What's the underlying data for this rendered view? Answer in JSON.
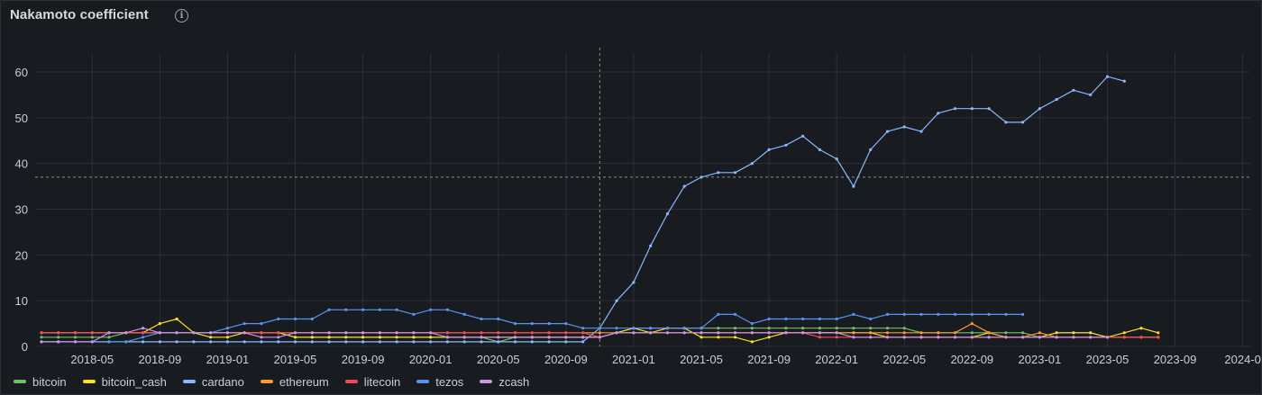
{
  "panel": {
    "title": "Nakamoto coefficient",
    "info_icon": "info-circle-icon"
  },
  "chart_data": {
    "type": "line",
    "title": "Nakamoto coefficient",
    "xlabel": "",
    "ylabel": "",
    "ylim": [
      0,
      65
    ],
    "y_ticks": [
      "0",
      "10",
      "20",
      "30",
      "40",
      "50",
      "60"
    ],
    "x_ticks": [
      "2018-05",
      "2018-09",
      "2019-01",
      "2019-05",
      "2019-09",
      "2020-01",
      "2020-05",
      "2020-09",
      "2021-01",
      "2021-05",
      "2021-09",
      "2022-01",
      "2022-05",
      "2022-09",
      "2023-01",
      "2023-05",
      "2023-09",
      "2024-0"
    ],
    "grid": true,
    "legend_position": "bottom",
    "crosshair": {
      "x": "2020-11-01",
      "y": 37
    },
    "series": [
      {
        "name": "bitcoin",
        "color": "#73bf69",
        "x": [
          "2018-02",
          "2018-03",
          "2018-04",
          "2018-05",
          "2018-06",
          "2018-07",
          "2018-08",
          "2018-09",
          "2018-10",
          "2018-11",
          "2018-12",
          "2019-01",
          "2019-02",
          "2019-03",
          "2019-04",
          "2019-05",
          "2019-06",
          "2019-07",
          "2019-08",
          "2019-09",
          "2019-10",
          "2019-11",
          "2019-12",
          "2020-01",
          "2020-02",
          "2020-03",
          "2020-04",
          "2020-05",
          "2020-06",
          "2020-07",
          "2020-08",
          "2020-09",
          "2020-10",
          "2020-11",
          "2020-12",
          "2021-01",
          "2021-02",
          "2021-03",
          "2021-04",
          "2021-05",
          "2021-06",
          "2021-07",
          "2021-08",
          "2021-09",
          "2021-10",
          "2021-11",
          "2021-12",
          "2022-01",
          "2022-02",
          "2022-03",
          "2022-04",
          "2022-05",
          "2022-06",
          "2022-07",
          "2022-08",
          "2022-09",
          "2022-10",
          "2022-11",
          "2022-12",
          "2023-01",
          "2023-02",
          "2023-03",
          "2023-04",
          "2023-05",
          "2023-06",
          "2023-07",
          "2023-08"
        ],
        "values": [
          2,
          2,
          2,
          2,
          2,
          3,
          3,
          3,
          3,
          3,
          3,
          3,
          3,
          3,
          3,
          2,
          2,
          2,
          2,
          2,
          2,
          2,
          2,
          2,
          2,
          2,
          2,
          1,
          2,
          2,
          2,
          2,
          2,
          2,
          3,
          4,
          4,
          4,
          4,
          4,
          4,
          4,
          4,
          4,
          4,
          4,
          4,
          4,
          4,
          4,
          4,
          4,
          3,
          3,
          3,
          3,
          3,
          3,
          3,
          2,
          3,
          3,
          3,
          2,
          2,
          2,
          2
        ]
      },
      {
        "name": "bitcoin_cash",
        "color": "#fade2a",
        "x": [
          "2018-02",
          "2018-03",
          "2018-04",
          "2018-05",
          "2018-06",
          "2018-07",
          "2018-08",
          "2018-09",
          "2018-10",
          "2018-11",
          "2018-12",
          "2019-01",
          "2019-02",
          "2019-03",
          "2019-04",
          "2019-05",
          "2019-06",
          "2019-07",
          "2019-08",
          "2019-09",
          "2019-10",
          "2019-11",
          "2019-12",
          "2020-01",
          "2020-02",
          "2020-03",
          "2020-04",
          "2020-05",
          "2020-06",
          "2020-07",
          "2020-08",
          "2020-09",
          "2020-10",
          "2020-11",
          "2020-12",
          "2021-01",
          "2021-02",
          "2021-03",
          "2021-04",
          "2021-05",
          "2021-06",
          "2021-07",
          "2021-08",
          "2021-09",
          "2021-10",
          "2021-11",
          "2021-12",
          "2022-01",
          "2022-02",
          "2022-03",
          "2022-04",
          "2022-05",
          "2022-06",
          "2022-07",
          "2022-08",
          "2022-09",
          "2022-10",
          "2022-11",
          "2022-12",
          "2023-01",
          "2023-02",
          "2023-03",
          "2023-04",
          "2023-05",
          "2023-06",
          "2023-07",
          "2023-08"
        ],
        "values": [
          3,
          3,
          3,
          3,
          3,
          3,
          3,
          5,
          6,
          3,
          2,
          2,
          3,
          3,
          3,
          2,
          2,
          2,
          2,
          2,
          2,
          2,
          2,
          2,
          2,
          2,
          2,
          2,
          2,
          2,
          2,
          2,
          2,
          2,
          3,
          4,
          3,
          4,
          4,
          2,
          2,
          2,
          1,
          2,
          3,
          3,
          3,
          3,
          3,
          3,
          2,
          2,
          2,
          2,
          2,
          2,
          3,
          2,
          2,
          2,
          3,
          3,
          3,
          2,
          3,
          4,
          3
        ]
      },
      {
        "name": "cardano",
        "color": "#8ab8ff",
        "x": [
          "2018-02",
          "2018-03",
          "2018-04",
          "2018-05",
          "2018-06",
          "2018-07",
          "2018-08",
          "2018-09",
          "2018-10",
          "2018-11",
          "2018-12",
          "2019-01",
          "2019-02",
          "2019-03",
          "2019-04",
          "2019-05",
          "2019-06",
          "2019-07",
          "2019-08",
          "2019-09",
          "2019-10",
          "2019-11",
          "2019-12",
          "2020-01",
          "2020-02",
          "2020-03",
          "2020-04",
          "2020-05",
          "2020-06",
          "2020-07",
          "2020-08",
          "2020-09",
          "2020-10",
          "2020-11",
          "2020-12",
          "2021-01",
          "2021-02",
          "2021-03",
          "2021-04",
          "2021-05",
          "2021-06",
          "2021-07",
          "2021-08",
          "2021-09",
          "2021-10",
          "2021-11",
          "2021-12",
          "2022-01",
          "2022-02",
          "2022-03",
          "2022-04",
          "2022-05",
          "2022-06",
          "2022-07",
          "2022-08",
          "2022-09",
          "2022-10",
          "2022-11",
          "2022-12",
          "2023-01",
          "2023-02",
          "2023-03",
          "2023-04",
          "2023-05",
          "2023-06"
        ],
        "values": [
          1,
          1,
          1,
          1,
          1,
          1,
          1,
          1,
          1,
          1,
          1,
          1,
          1,
          1,
          1,
          1,
          1,
          1,
          1,
          1,
          1,
          1,
          1,
          1,
          1,
          1,
          1,
          1,
          1,
          1,
          1,
          1,
          1,
          4,
          10,
          14,
          22,
          29,
          35,
          37,
          38,
          38,
          40,
          43,
          44,
          46,
          43,
          41,
          35,
          43,
          47,
          48,
          47,
          51,
          52,
          52,
          52,
          49,
          49,
          52,
          54,
          56,
          55,
          59,
          58
        ]
      },
      {
        "name": "ethereum",
        "color": "#ff9830",
        "x": [
          "2018-02",
          "2018-03",
          "2018-04",
          "2018-05",
          "2018-06",
          "2018-07",
          "2018-08",
          "2018-09",
          "2018-10",
          "2018-11",
          "2018-12",
          "2019-01",
          "2019-02",
          "2019-03",
          "2019-04",
          "2019-05",
          "2019-06",
          "2019-07",
          "2019-08",
          "2019-09",
          "2019-10",
          "2019-11",
          "2019-12",
          "2020-01",
          "2020-02",
          "2020-03",
          "2020-04",
          "2020-05",
          "2020-06",
          "2020-07",
          "2020-08",
          "2020-09",
          "2020-10",
          "2020-11",
          "2020-12",
          "2021-01",
          "2021-02",
          "2021-03",
          "2021-04",
          "2021-05",
          "2021-06",
          "2021-07",
          "2021-08",
          "2021-09",
          "2021-10",
          "2021-11",
          "2021-12",
          "2022-01",
          "2022-02",
          "2022-03",
          "2022-04",
          "2022-05",
          "2022-06",
          "2022-07",
          "2022-08",
          "2022-09",
          "2022-10",
          "2022-11",
          "2022-12",
          "2023-01",
          "2023-02",
          "2023-03",
          "2023-04",
          "2023-05",
          "2023-06",
          "2023-07",
          "2023-08"
        ],
        "values": [
          3,
          3,
          3,
          3,
          3,
          3,
          3,
          3,
          3,
          3,
          3,
          3,
          3,
          3,
          3,
          3,
          3,
          3,
          3,
          3,
          3,
          3,
          3,
          3,
          3,
          3,
          3,
          3,
          3,
          3,
          3,
          3,
          3,
          3,
          3,
          3,
          3,
          3,
          3,
          3,
          3,
          3,
          3,
          3,
          3,
          3,
          3,
          3,
          3,
          3,
          3,
          3,
          3,
          3,
          3,
          5,
          3,
          2,
          2,
          3,
          2,
          2,
          2,
          2,
          2,
          2,
          2
        ]
      },
      {
        "name": "litecoin",
        "color": "#f2495c",
        "x": [
          "2018-02",
          "2018-03",
          "2018-04",
          "2018-05",
          "2018-06",
          "2018-07",
          "2018-08",
          "2018-09",
          "2018-10",
          "2018-11",
          "2018-12",
          "2019-01",
          "2019-02",
          "2019-03",
          "2019-04",
          "2019-05",
          "2019-06",
          "2019-07",
          "2019-08",
          "2019-09",
          "2019-10",
          "2019-11",
          "2019-12",
          "2020-01",
          "2020-02",
          "2020-03",
          "2020-04",
          "2020-05",
          "2020-06",
          "2020-07",
          "2020-08",
          "2020-09",
          "2020-10",
          "2020-11",
          "2020-12",
          "2021-01",
          "2021-02",
          "2021-03",
          "2021-04",
          "2021-05",
          "2021-06",
          "2021-07",
          "2021-08",
          "2021-09",
          "2021-10",
          "2021-11",
          "2021-12",
          "2022-01",
          "2022-02",
          "2022-03",
          "2022-04",
          "2022-05",
          "2022-06",
          "2022-07",
          "2022-08",
          "2022-09",
          "2022-10",
          "2022-11",
          "2022-12",
          "2023-01",
          "2023-02",
          "2023-03",
          "2023-04",
          "2023-05",
          "2023-06",
          "2023-07",
          "2023-08"
        ],
        "values": [
          3,
          3,
          3,
          3,
          3,
          3,
          3,
          3,
          3,
          3,
          3,
          3,
          3,
          3,
          3,
          3,
          3,
          3,
          3,
          3,
          3,
          3,
          3,
          3,
          3,
          3,
          3,
          3,
          3,
          3,
          3,
          3,
          3,
          2,
          3,
          3,
          3,
          3,
          3,
          3,
          3,
          3,
          3,
          3,
          3,
          3,
          2,
          2,
          2,
          2,
          2,
          2,
          2,
          2,
          2,
          2,
          2,
          2,
          2,
          2,
          2,
          2,
          2,
          2,
          2,
          2,
          2
        ]
      },
      {
        "name": "tezos",
        "color": "#5794f2",
        "x": [
          "2018-06",
          "2018-07",
          "2018-08",
          "2018-09",
          "2018-10",
          "2018-11",
          "2018-12",
          "2019-01",
          "2019-02",
          "2019-03",
          "2019-04",
          "2019-05",
          "2019-06",
          "2019-07",
          "2019-08",
          "2019-09",
          "2019-10",
          "2019-11",
          "2019-12",
          "2020-01",
          "2020-02",
          "2020-03",
          "2020-04",
          "2020-05",
          "2020-06",
          "2020-07",
          "2020-08",
          "2020-09",
          "2020-10",
          "2020-11",
          "2020-12",
          "2021-01",
          "2021-02",
          "2021-03",
          "2021-04",
          "2021-05",
          "2021-06",
          "2021-07",
          "2021-08",
          "2021-09",
          "2021-10",
          "2021-11",
          "2021-12",
          "2022-01",
          "2022-02",
          "2022-03",
          "2022-04",
          "2022-05",
          "2022-06",
          "2022-07",
          "2022-08",
          "2022-09",
          "2022-10",
          "2022-11",
          "2022-12"
        ],
        "values": [
          1,
          1,
          2,
          3,
          3,
          3,
          3,
          4,
          5,
          5,
          6,
          6,
          6,
          8,
          8,
          8,
          8,
          8,
          7,
          8,
          8,
          7,
          6,
          6,
          5,
          5,
          5,
          5,
          4,
          4,
          4,
          4,
          4,
          4,
          4,
          4,
          7,
          7,
          5,
          6,
          6,
          6,
          6,
          6,
          7,
          6,
          7,
          7,
          7,
          7,
          7,
          7,
          7,
          7,
          7
        ]
      },
      {
        "name": "zcash",
        "color": "#ca95e5",
        "x": [
          "2018-02",
          "2018-03",
          "2018-04",
          "2018-05",
          "2018-06",
          "2018-07",
          "2018-08",
          "2018-09",
          "2018-10",
          "2018-11",
          "2018-12",
          "2019-01",
          "2019-02",
          "2019-03",
          "2019-04",
          "2019-05",
          "2019-06",
          "2019-07",
          "2019-08",
          "2019-09",
          "2019-10",
          "2019-11",
          "2019-12",
          "2020-01",
          "2020-02",
          "2020-03",
          "2020-04",
          "2020-05",
          "2020-06",
          "2020-07",
          "2020-08",
          "2020-09",
          "2020-10",
          "2020-11",
          "2020-12",
          "2021-01",
          "2021-02",
          "2021-03",
          "2021-04",
          "2021-05",
          "2021-06",
          "2021-07",
          "2021-08",
          "2021-09",
          "2021-10",
          "2021-11",
          "2021-12",
          "2022-01",
          "2022-02",
          "2022-03",
          "2022-04",
          "2022-05",
          "2022-06",
          "2022-07",
          "2022-08",
          "2022-09",
          "2022-10",
          "2022-11",
          "2022-12",
          "2023-01",
          "2023-02",
          "2023-03",
          "2023-04",
          "2023-05"
        ],
        "values": [
          1,
          1,
          1,
          1,
          3,
          3,
          4,
          3,
          3,
          3,
          3,
          3,
          3,
          2,
          2,
          3,
          3,
          3,
          3,
          3,
          3,
          3,
          3,
          3,
          2,
          2,
          2,
          2,
          2,
          2,
          2,
          2,
          2,
          2,
          3,
          3,
          3,
          3,
          3,
          3,
          3,
          3,
          3,
          3,
          3,
          3,
          3,
          3,
          2,
          2,
          2,
          2,
          2,
          2,
          2,
          2,
          2,
          2,
          2,
          2,
          2,
          2,
          2,
          2
        ]
      }
    ]
  }
}
